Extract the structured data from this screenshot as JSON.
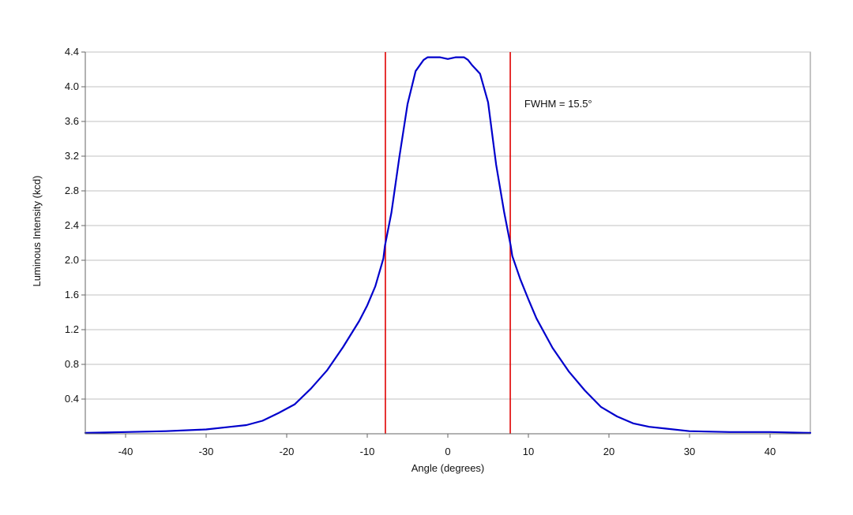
{
  "chart_data": {
    "type": "line",
    "title": "",
    "xlabel": "Angle (degrees)",
    "ylabel": "Luminous Intensity (kcd)",
    "xlim": [
      -45,
      45
    ],
    "ylim": [
      0,
      4.4
    ],
    "xticks": [
      -40,
      -30,
      -20,
      -10,
      0,
      10,
      20,
      30,
      40
    ],
    "xtick_labels": [
      "-40",
      "-30",
      "-20",
      "-10",
      "0",
      "10",
      "20",
      "30",
      "40"
    ],
    "yticks": [
      0.4,
      0.8,
      1.2,
      1.6,
      2.0,
      2.4,
      2.8,
      3.2,
      3.6,
      4.0,
      4.4
    ],
    "ytick_labels": [
      "0.4",
      "0.8",
      "1.2",
      "1.6",
      "2.0",
      "2.4",
      "2.8",
      "3.2",
      "3.6",
      "4.0",
      "4.4"
    ],
    "grid": "horizontal",
    "series": [
      {
        "color": "#0000cc",
        "x": [
          -45,
          -40,
          -35,
          -30,
          -27,
          -25,
          -23,
          -21,
          -19,
          -17,
          -15,
          -13,
          -11,
          -10,
          -9,
          -8,
          -7.8,
          -7,
          -6,
          -5,
          -4,
          -3,
          -2.5,
          -2,
          -1,
          0,
          1,
          2,
          2.5,
          3,
          4,
          5,
          6,
          7,
          7.8,
          8,
          9,
          10,
          11,
          13,
          15,
          17,
          19,
          21,
          23,
          25,
          27,
          30,
          35,
          40,
          45
        ],
        "y": [
          0.01,
          0.02,
          0.03,
          0.05,
          0.08,
          0.1,
          0.15,
          0.24,
          0.34,
          0.52,
          0.73,
          1.0,
          1.3,
          1.48,
          1.7,
          2.02,
          2.17,
          2.55,
          3.2,
          3.8,
          4.18,
          4.31,
          4.34,
          4.34,
          4.34,
          4.32,
          4.34,
          4.34,
          4.31,
          4.25,
          4.15,
          3.82,
          3.1,
          2.55,
          2.17,
          2.05,
          1.78,
          1.55,
          1.33,
          0.99,
          0.72,
          0.5,
          0.31,
          0.2,
          0.12,
          0.08,
          0.06,
          0.03,
          0.02,
          0.02,
          0.01
        ]
      }
    ],
    "vertical_lines": [
      {
        "x": -7.75,
        "color": "#e00000"
      },
      {
        "x": 7.75,
        "color": "#e00000"
      }
    ],
    "annotations": [
      {
        "text": "FWHM = 15.5°",
        "x": 9.5,
        "y": 3.8
      }
    ]
  }
}
